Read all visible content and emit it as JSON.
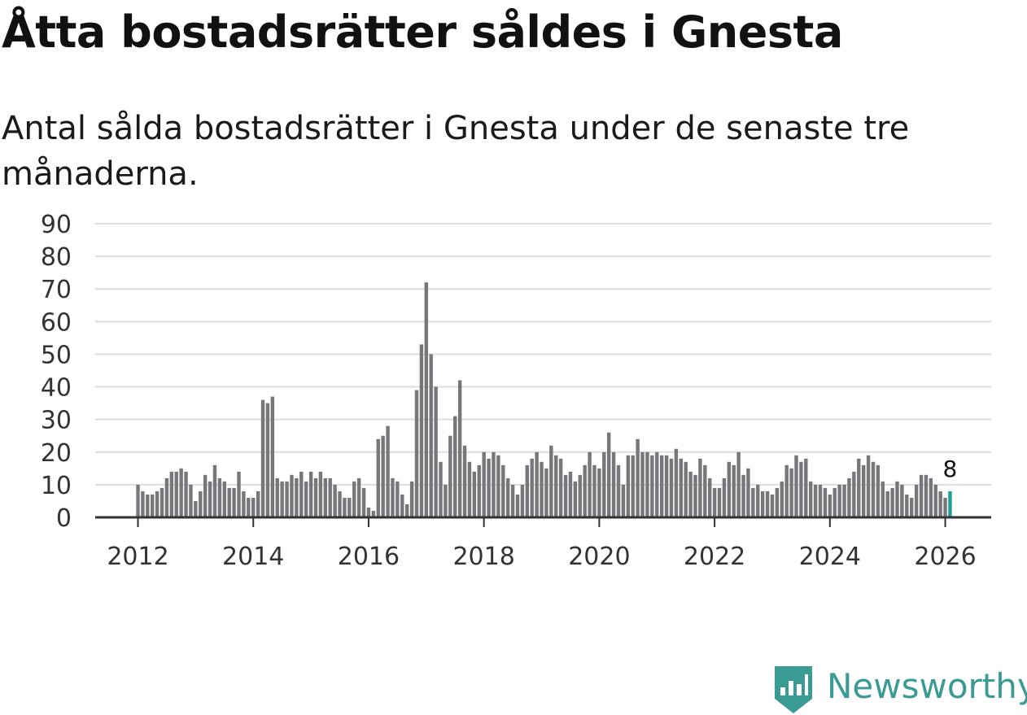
{
  "title": "Åtta bostadsrätter såldes i Gnesta",
  "subtitle": "Antal sålda bostadsrätter i Gnesta under de senaste tre månaderna.",
  "logo": {
    "text": "Newsworthy",
    "icon": "newsworthy-chart-bubble-icon",
    "color": "#3a9a94"
  },
  "colors": {
    "bar": "#77767b",
    "highlight": "#1d9e96",
    "grid": "#dddddd",
    "axis": "#333333",
    "tick": "#333333"
  },
  "chart_data": {
    "type": "bar",
    "title": "Åtta bostadsrätter såldes i Gnesta",
    "xlabel": "",
    "ylabel": "",
    "ylim": [
      0,
      90
    ],
    "yticks": [
      "0",
      "10",
      "20",
      "30",
      "40",
      "50",
      "60",
      "70",
      "80",
      "90"
    ],
    "xticks": [
      "2012",
      "2014",
      "2016",
      "2018",
      "2020",
      "2022",
      "2024",
      "2026"
    ],
    "grid": true,
    "series_start": "2012-01",
    "series_end": "2026-02",
    "highlight_label": "8",
    "values": [
      10,
      8,
      7,
      7,
      8,
      9,
      12,
      14,
      14,
      15,
      14,
      10,
      5,
      8,
      13,
      11,
      16,
      12,
      11,
      9,
      9,
      14,
      8,
      6,
      6,
      8,
      36,
      35,
      37,
      12,
      11,
      11,
      13,
      12,
      14,
      11,
      14,
      12,
      14,
      12,
      12,
      10,
      8,
      6,
      6,
      11,
      12,
      9,
      3,
      2,
      24,
      25,
      28,
      12,
      11,
      7,
      4,
      11,
      39,
      53,
      72,
      50,
      40,
      17,
      10,
      25,
      31,
      42,
      22,
      17,
      14,
      16,
      20,
      18,
      20,
      19,
      16,
      12,
      10,
      7,
      10,
      16,
      18,
      20,
      17,
      15,
      22,
      19,
      18,
      13,
      14,
      11,
      13,
      16,
      20,
      16,
      15,
      20,
      26,
      20,
      16,
      10,
      19,
      19,
      24,
      20,
      20,
      19,
      20,
      19,
      19,
      18,
      21,
      18,
      17,
      14,
      13,
      18,
      16,
      12,
      9,
      9,
      12,
      17,
      16,
      20,
      13,
      15,
      9,
      10,
      8,
      8,
      7,
      9,
      11,
      16,
      15,
      19,
      17,
      18,
      11,
      10,
      10,
      9,
      7,
      9,
      10,
      10,
      12,
      14,
      18,
      16,
      19,
      17,
      16,
      11,
      8,
      9,
      11,
      10,
      7,
      6,
      10,
      13,
      13,
      12,
      10,
      8,
      6,
      8
    ]
  }
}
